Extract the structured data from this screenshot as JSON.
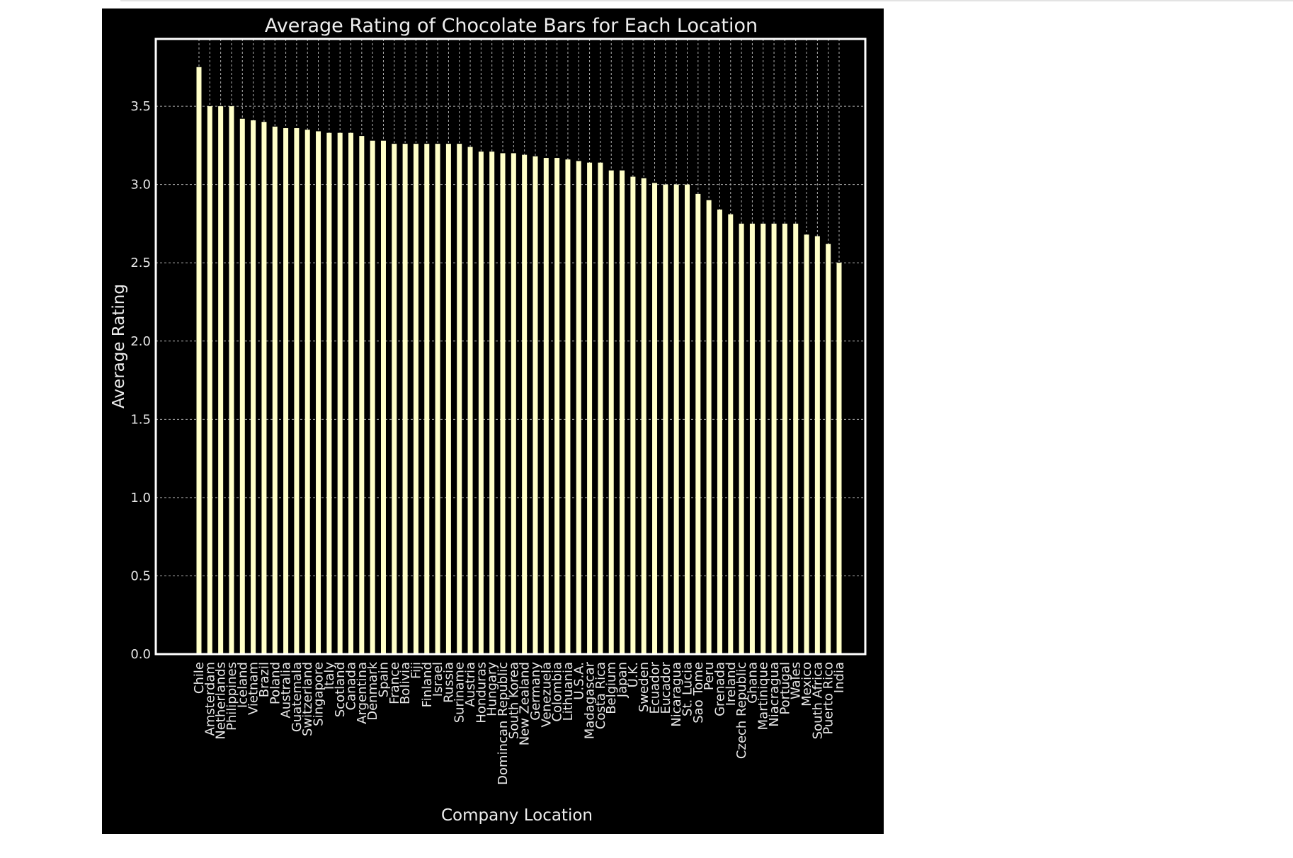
{
  "chart_data": {
    "type": "bar",
    "title": "Average Rating of Chocolate Bars for Each Location",
    "xlabel": "Company Location",
    "ylabel": "Average Rating",
    "ylim": [
      0,
      3.93
    ],
    "yticks": [
      "0.0",
      "0.5",
      "1.0",
      "1.5",
      "2.0",
      "2.5",
      "3.0",
      "3.5"
    ],
    "grid": true,
    "colors": {
      "background": "#000000",
      "bar": "#ffffc8",
      "frame": "#ffffff",
      "grid": "#b0b0b0",
      "text": "#e8e8e8"
    },
    "categories": [
      "Chile",
      "Amsterdam",
      "Netherlands",
      "Philippines",
      "Iceland",
      "Vietnam",
      "Brazil",
      "Poland",
      "Australia",
      "Guatemala",
      "Switzerland",
      "Singapore",
      "Italy",
      "Scotland",
      "Canada",
      "Argentina",
      "Denmark",
      "Spain",
      "France",
      "Bolivia",
      "Fiji",
      "Finland",
      "Israel",
      "Russia",
      "Suriname",
      "Austria",
      "Honduras",
      "Hungary",
      "Domincan Republic",
      "South Korea",
      "New Zealand",
      "Germany",
      "Venezuela",
      "Colombia",
      "Lithuania",
      "U.S.A.",
      "Madagascar",
      "Costa Rica",
      "Belgium",
      "Japan",
      "U.K.",
      "Sweden",
      "Ecuador",
      "Eucador",
      "Nicaragua",
      "St. Lucia",
      "Sao Tome",
      "Peru",
      "Grenada",
      "Ireland",
      "Czech Republic",
      "Ghana",
      "Martinique",
      "Niacragua",
      "Portugal",
      "Wales",
      "Mexico",
      "South Africa",
      "Puerto Rico",
      "India"
    ],
    "values": [
      3.75,
      3.5,
      3.5,
      3.5,
      3.42,
      3.41,
      3.4,
      3.37,
      3.36,
      3.36,
      3.35,
      3.34,
      3.33,
      3.33,
      3.33,
      3.31,
      3.28,
      3.28,
      3.26,
      3.26,
      3.26,
      3.26,
      3.26,
      3.26,
      3.26,
      3.24,
      3.21,
      3.21,
      3.2,
      3.2,
      3.19,
      3.18,
      3.17,
      3.17,
      3.16,
      3.15,
      3.14,
      3.14,
      3.09,
      3.09,
      3.05,
      3.04,
      3.01,
      3.0,
      3.0,
      3.0,
      2.94,
      2.9,
      2.84,
      2.81,
      2.75,
      2.75,
      2.75,
      2.75,
      2.75,
      2.75,
      2.68,
      2.67,
      2.62,
      2.5
    ]
  }
}
